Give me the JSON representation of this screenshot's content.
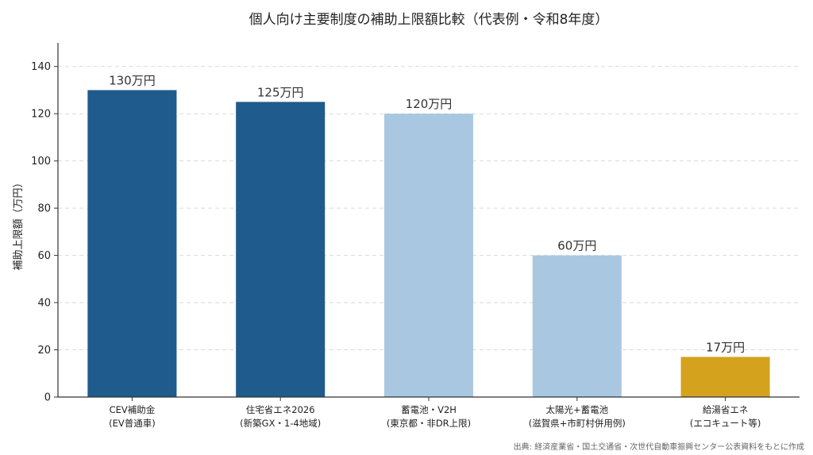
{
  "chart_data": {
    "type": "bar",
    "title": "個人向け主要制度の補助上限額比較（代表例・令和8年度）",
    "ylabel": "補助上限額（万円）",
    "xlabel": "",
    "ylim": [
      0,
      150
    ],
    "yticks": [
      0,
      20,
      40,
      60,
      80,
      100,
      120,
      140
    ],
    "grid": "horizontal-dashed",
    "categories": [
      [
        "CEV補助金",
        "(EV普通車)"
      ],
      [
        "住宅省エネ2026",
        "(新築GX・1-4地域)"
      ],
      [
        "蓄電池・V2H",
        "(東京都・非DR上限)"
      ],
      [
        "太陽光+蓄電池",
        "(滋賀県+市町村併用例)"
      ],
      [
        "給湯省エネ",
        "(エコキュート等)"
      ]
    ],
    "values": [
      130,
      125,
      120,
      60,
      17
    ],
    "data_labels": [
      "130万円",
      "125万円",
      "120万円",
      "60万円",
      "17万円"
    ],
    "colors": [
      "#1f5b8c",
      "#1f5b8c",
      "#a9c7e0",
      "#a9c7e0",
      "#d4a21c"
    ],
    "source": "出典: 経済産業省・国土交通省・次世代自動車振興センター公表資料をもとに作成"
  }
}
